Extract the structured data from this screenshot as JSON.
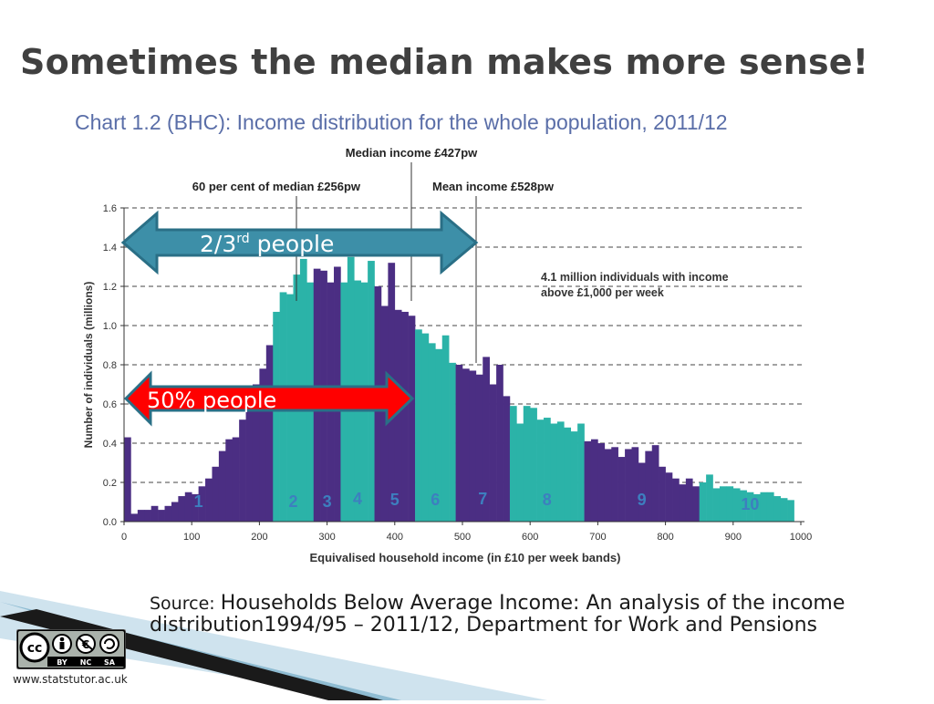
{
  "slide": {
    "title": "Sometimes the median makes more sense!",
    "source_lead": "Source: ",
    "source_text": "Households Below Average Income: An analysis of the income distribution1994/95 – 2011/12, Department for Work and Pensions",
    "footer_url": "www.statstutor.ac.uk",
    "cc_labels": [
      "BY",
      "NC",
      "SA"
    ]
  },
  "annotations": {
    "two_thirds_base": "2/3",
    "two_thirds_sup": "rd",
    "two_thirds_tail": " people",
    "fifty_percent": "50%  people",
    "arrow_blue_color": "#3d8fa8",
    "arrow_red_color": "#ff0000"
  },
  "chart_data": {
    "type": "bar",
    "title": "Chart 1.2 (BHC): Income distribution for the whole population, 2011/12",
    "xlabel": "Equivalised household income (in £10 per week bands)",
    "ylabel": "Number of individuals (millions)",
    "xlim": [
      0,
      1000
    ],
    "ylim": [
      0,
      1.6
    ],
    "x_ticks": [
      0,
      100,
      200,
      300,
      400,
      500,
      600,
      700,
      800,
      900,
      1000
    ],
    "y_ticks": [
      "0.0",
      "0.2",
      "0.4",
      "0.6",
      "0.8",
      "1.0",
      "1.2",
      "1.4",
      "1.6"
    ],
    "grid": "horizontal dashed",
    "colors": {
      "purple": "#4b2e83",
      "teal": "#2bb3a8"
    },
    "bin_width": 10,
    "values": [
      0.43,
      0.04,
      0.06,
      0.06,
      0.08,
      0.06,
      0.08,
      0.1,
      0.13,
      0.15,
      0.14,
      0.18,
      0.22,
      0.28,
      0.36,
      0.42,
      0.43,
      0.52,
      0.58,
      0.7,
      0.78,
      0.9,
      1.07,
      1.17,
      1.16,
      1.26,
      1.34,
      1.22,
      1.29,
      1.28,
      1.22,
      1.3,
      1.22,
      1.35,
      1.23,
      1.22,
      1.33,
      1.2,
      1.1,
      1.32,
      1.08,
      1.07,
      1.05,
      0.98,
      0.96,
      0.91,
      0.88,
      0.95,
      0.81,
      0.8,
      0.78,
      0.77,
      0.75,
      0.84,
      0.7,
      0.8,
      0.64,
      0.59,
      0.5,
      0.59,
      0.58,
      0.52,
      0.53,
      0.5,
      0.51,
      0.48,
      0.46,
      0.5,
      0.41,
      0.42,
      0.4,
      0.37,
      0.38,
      0.33,
      0.37,
      0.38,
      0.3,
      0.36,
      0.39,
      0.28,
      0.25,
      0.22,
      0.19,
      0.22,
      0.18,
      0.2,
      0.24,
      0.17,
      0.18,
      0.18,
      0.17,
      0.16,
      0.15,
      0.14,
      0.15,
      0.15,
      0.13,
      0.12,
      0.11
    ],
    "deciles": [
      {
        "label": "1",
        "from": 0,
        "to": 220,
        "color": "purple"
      },
      {
        "label": "2",
        "from": 220,
        "to": 280,
        "color": "teal"
      },
      {
        "label": "3",
        "from": 280,
        "to": 320,
        "color": "purple"
      },
      {
        "label": "4",
        "from": 320,
        "to": 370,
        "color": "teal"
      },
      {
        "label": "5",
        "from": 370,
        "to": 430,
        "color": "purple"
      },
      {
        "label": "6",
        "from": 430,
        "to": 490,
        "color": "teal"
      },
      {
        "label": "7",
        "from": 490,
        "to": 570,
        "color": "purple"
      },
      {
        "label": "8",
        "from": 570,
        "to": 680,
        "color": "teal"
      },
      {
        "label": "9",
        "from": 680,
        "to": 850,
        "color": "purple"
      },
      {
        "label": "10",
        "from": 850,
        "to": 1000,
        "color": "teal"
      }
    ],
    "reference_lines": [
      {
        "label": "60 per cent of median £256pw",
        "x": 256
      },
      {
        "label": "Median income £427pw",
        "x": 427
      },
      {
        "label": "Mean income £528pw",
        "x": 528
      }
    ],
    "note": "4.1 million individuals with income above £1,000 per week"
  }
}
